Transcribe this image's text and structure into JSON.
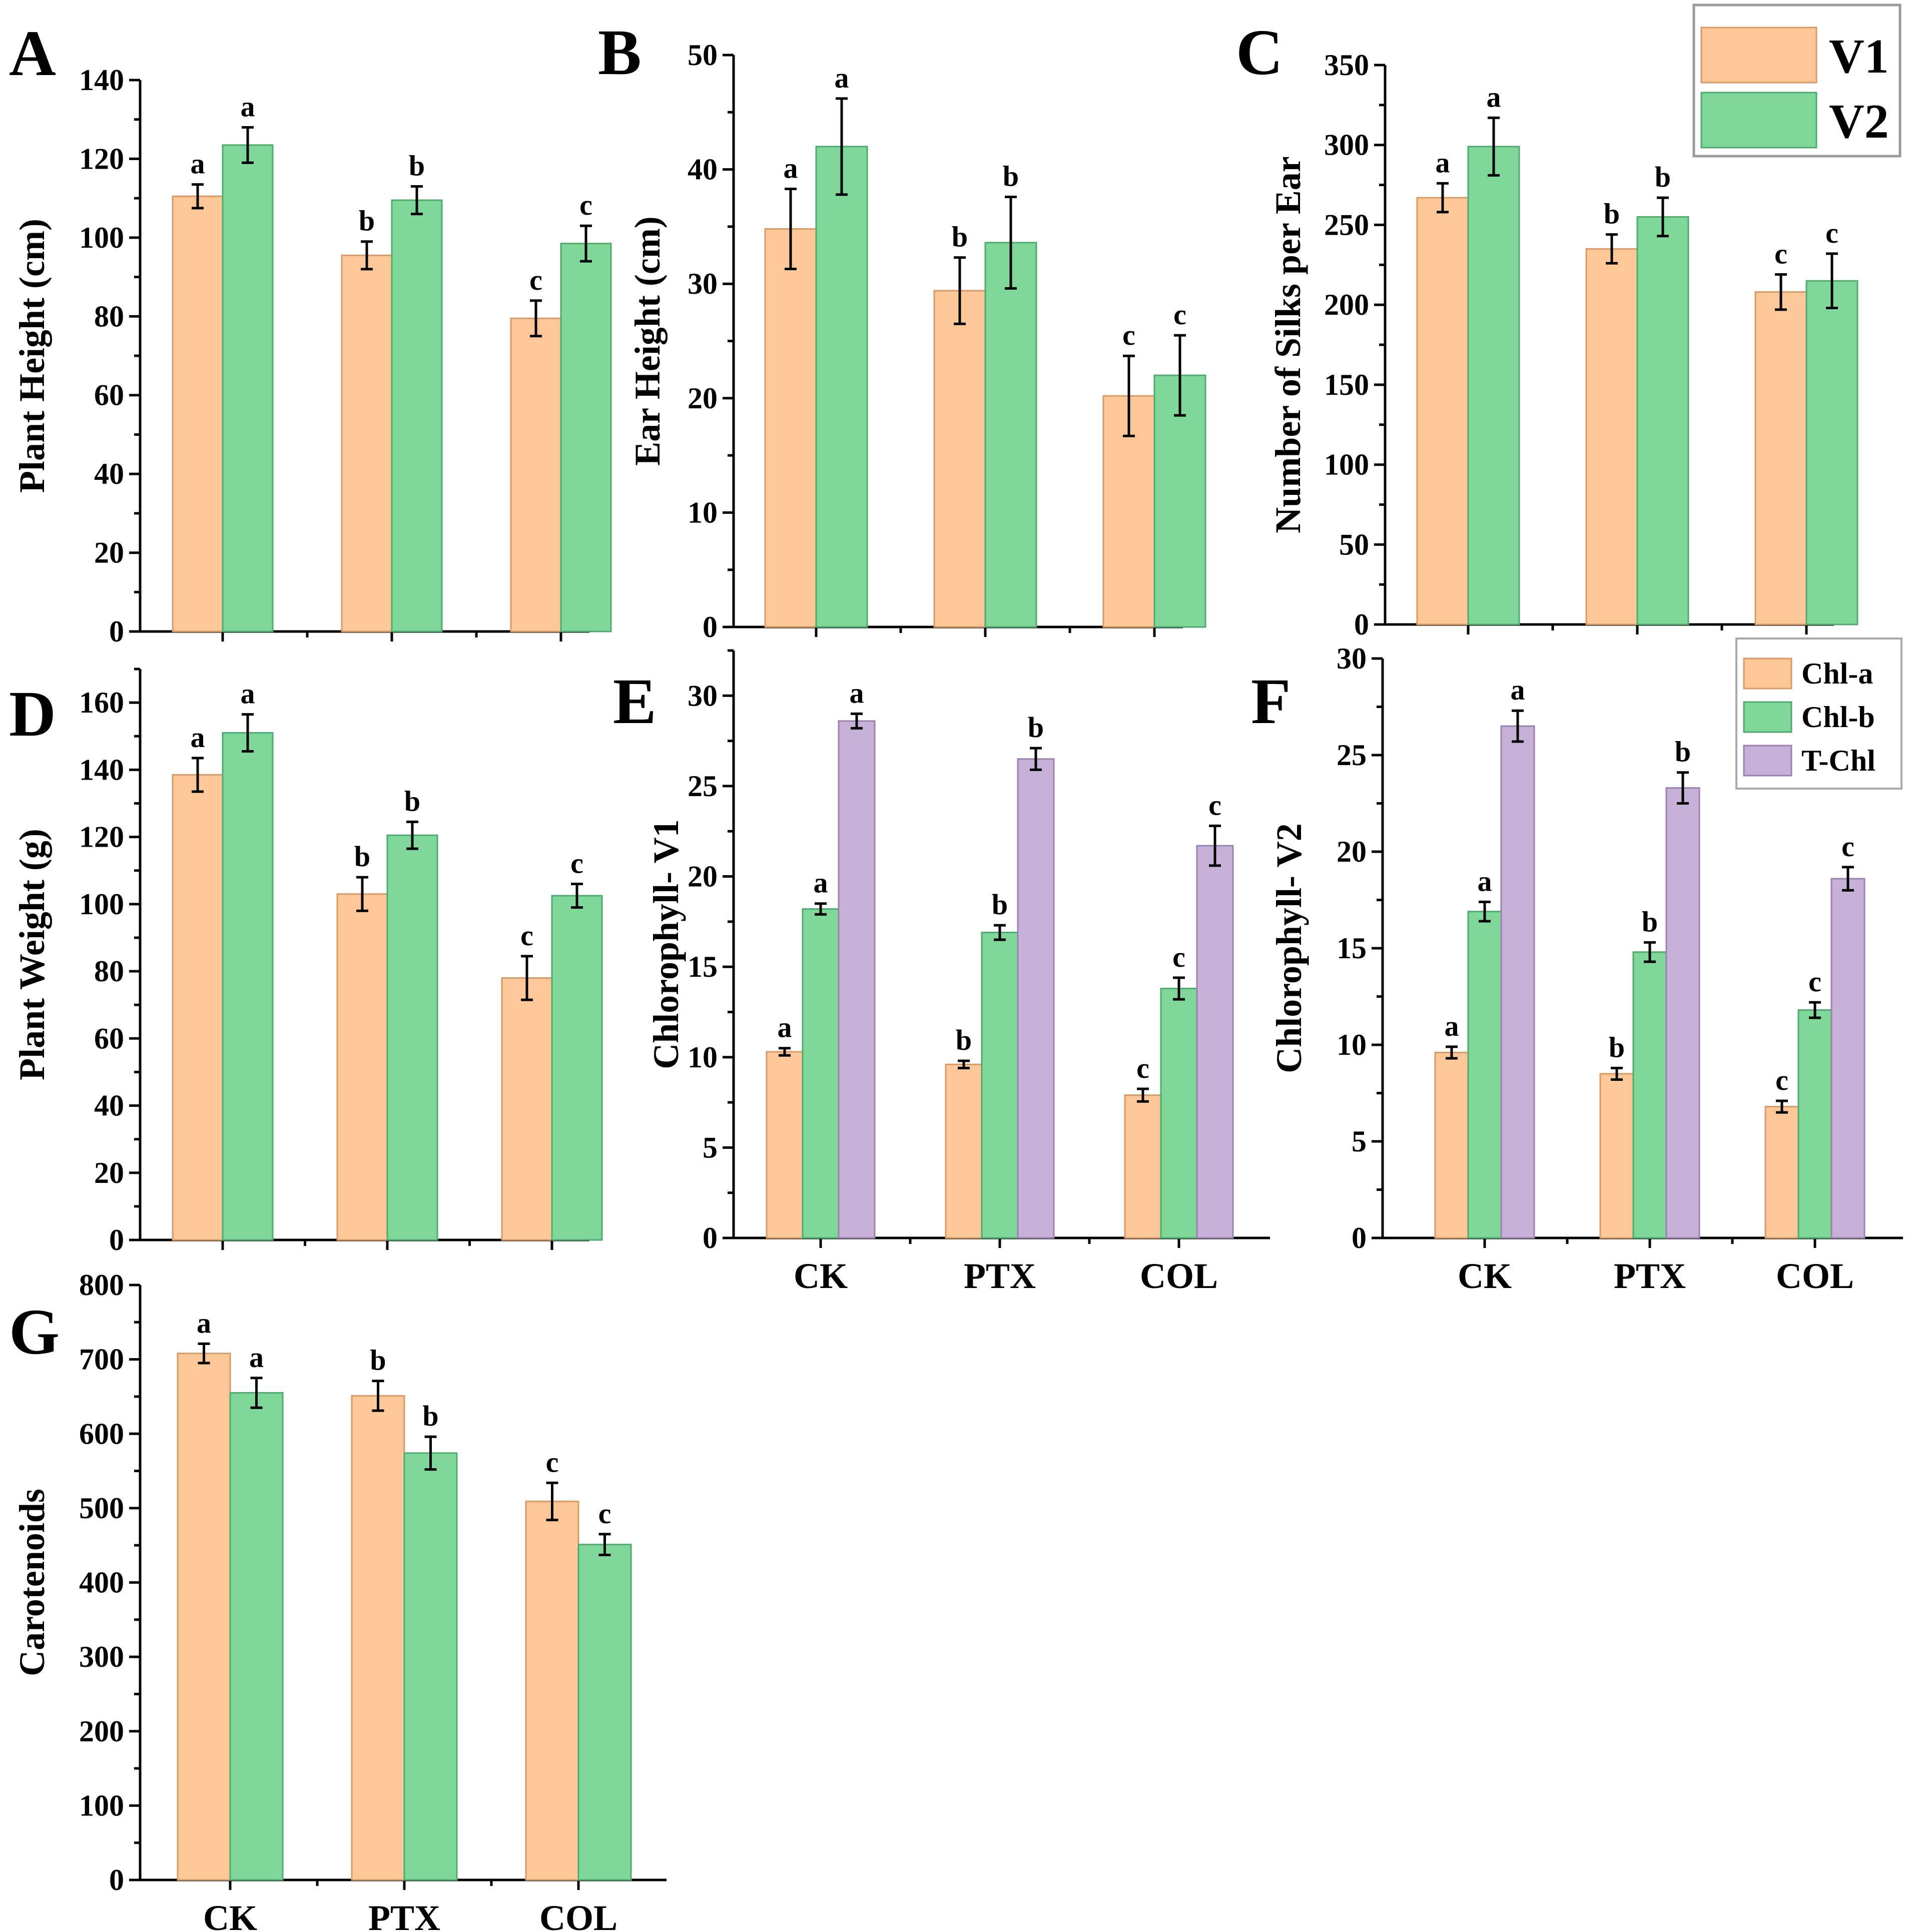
{
  "figure": {
    "categories": [
      "CK",
      "PTX",
      "COL"
    ],
    "colors": {
      "V1": "#FEC797",
      "V2": "#7FD89A",
      "Chl-a": "#FEC797",
      "Chl-b": "#7FD89A",
      "T-Chl": "#C8B1D9"
    },
    "legends": {
      "variety": {
        "entries": [
          "V1",
          "V2"
        ]
      },
      "chlorophyll": {
        "entries": [
          "Chl-a",
          "Chl-b",
          "T-Chl"
        ]
      }
    }
  },
  "chart_data": [
    {
      "id": "A",
      "panel_letter": "A",
      "type": "bar",
      "ylabel": "Plant Height (cm)",
      "ylim": [
        0,
        140
      ],
      "yticks": [
        0,
        20,
        40,
        60,
        80,
        100,
        120,
        140
      ],
      "categories": [
        "CK",
        "PTX",
        "COL"
      ],
      "show_category_labels": false,
      "series": [
        {
          "name": "V1",
          "values": [
            110.5,
            95.5,
            79.5
          ],
          "errors": [
            3.0,
            3.5,
            4.5
          ],
          "letters": [
            "a",
            "b",
            "c"
          ]
        },
        {
          "name": "V2",
          "values": [
            123.5,
            109.5,
            98.5
          ],
          "errors": [
            4.5,
            3.5,
            4.5
          ],
          "letters": [
            "a",
            "b",
            "c"
          ]
        }
      ]
    },
    {
      "id": "B",
      "panel_letter": "B",
      "type": "bar",
      "ylabel": "Ear Height (cm)",
      "ylim": [
        0,
        50
      ],
      "yticks": [
        0,
        10,
        20,
        30,
        40,
        50
      ],
      "categories": [
        "CK",
        "PTX",
        "COL"
      ],
      "show_category_labels": false,
      "series": [
        {
          "name": "V1",
          "values": [
            34.8,
            29.4,
            20.2
          ],
          "errors": [
            3.5,
            2.9,
            3.5
          ],
          "letters": [
            "a",
            "b",
            "c"
          ]
        },
        {
          "name": "V2",
          "values": [
            42.0,
            33.6,
            22.0
          ],
          "errors": [
            4.2,
            4.0,
            3.5
          ],
          "letters": [
            "a",
            "b",
            "c"
          ]
        }
      ]
    },
    {
      "id": "C",
      "panel_letter": "C",
      "type": "bar",
      "ylabel": "Number of Silks per Ear",
      "ylim": [
        0,
        350
      ],
      "yticks": [
        0,
        50,
        100,
        150,
        200,
        250,
        300,
        350
      ],
      "categories": [
        "CK",
        "PTX",
        "COL"
      ],
      "show_category_labels": false,
      "series": [
        {
          "name": "V1",
          "values": [
            267,
            235,
            208
          ],
          "errors": [
            9,
            9,
            11
          ],
          "letters": [
            "a",
            "b",
            "c"
          ]
        },
        {
          "name": "V2",
          "values": [
            299,
            255,
            215
          ],
          "errors": [
            18,
            12,
            17
          ],
          "letters": [
            "a",
            "b",
            "c"
          ]
        }
      ]
    },
    {
      "id": "D",
      "panel_letter": "D",
      "type": "bar",
      "ylabel": "Plant Weight (g)",
      "ylim": [
        0,
        170
      ],
      "yticks": [
        0,
        20,
        40,
        60,
        80,
        100,
        120,
        140,
        160
      ],
      "categories": [
        "CK",
        "PTX",
        "COL"
      ],
      "show_category_labels": false,
      "series": [
        {
          "name": "V1",
          "values": [
            138.5,
            103,
            78
          ],
          "errors": [
            5,
            5,
            6.5
          ],
          "letters": [
            "a",
            "b",
            "c"
          ]
        },
        {
          "name": "V2",
          "values": [
            151,
            120.5,
            102.5
          ],
          "errors": [
            5.5,
            4,
            3.5
          ],
          "letters": [
            "a",
            "b",
            "c"
          ]
        }
      ]
    },
    {
      "id": "E",
      "panel_letter": "E",
      "type": "bar",
      "ylabel": "Chlorophyll- V1",
      "ylim": [
        0,
        32.5
      ],
      "yticks": [
        0,
        5,
        10,
        15,
        20,
        25,
        30
      ],
      "categories": [
        "CK",
        "PTX",
        "COL"
      ],
      "show_category_labels": true,
      "series": [
        {
          "name": "Chl-a",
          "values": [
            10.3,
            9.6,
            7.9
          ],
          "errors": [
            0.2,
            0.2,
            0.35
          ],
          "letters": [
            "a",
            "b",
            "c"
          ]
        },
        {
          "name": "Chl-b",
          "values": [
            18.2,
            16.9,
            13.8
          ],
          "errors": [
            0.3,
            0.4,
            0.6
          ],
          "letters": [
            "a",
            "b",
            "c"
          ]
        },
        {
          "name": "T-Chl",
          "values": [
            28.6,
            26.5,
            21.7
          ],
          "errors": [
            0.4,
            0.6,
            1.1
          ],
          "letters": [
            "a",
            "b",
            "c"
          ]
        }
      ]
    },
    {
      "id": "F",
      "panel_letter": "F",
      "type": "bar",
      "ylabel": "Chlorophyll- V2",
      "ylim": [
        0,
        30
      ],
      "yticks": [
        0,
        5,
        10,
        15,
        20,
        25,
        30
      ],
      "categories": [
        "CK",
        "PTX",
        "COL"
      ],
      "show_category_labels": true,
      "series": [
        {
          "name": "Chl-a",
          "values": [
            9.6,
            8.5,
            6.8
          ],
          "errors": [
            0.3,
            0.3,
            0.3
          ],
          "letters": [
            "a",
            "b",
            "c"
          ]
        },
        {
          "name": "Chl-b",
          "values": [
            16.9,
            14.8,
            11.8
          ],
          "errors": [
            0.5,
            0.5,
            0.4
          ],
          "letters": [
            "a",
            "b",
            "c"
          ]
        },
        {
          "name": "T-Chl",
          "values": [
            26.5,
            23.3,
            18.6
          ],
          "errors": [
            0.8,
            0.8,
            0.6
          ],
          "letters": [
            "a",
            "b",
            "c"
          ]
        }
      ]
    },
    {
      "id": "G",
      "panel_letter": "G",
      "type": "bar",
      "ylabel": "Carotenoids",
      "ylim": [
        0,
        800
      ],
      "yticks": [
        0,
        100,
        200,
        300,
        400,
        500,
        600,
        700,
        800
      ],
      "categories": [
        "CK",
        "PTX",
        "COL"
      ],
      "show_category_labels": true,
      "series": [
        {
          "name": "V1",
          "values": [
            708,
            651,
            509
          ],
          "errors": [
            13,
            20,
            25
          ],
          "letters": [
            "a",
            "b",
            "c"
          ]
        },
        {
          "name": "V2",
          "values": [
            655,
            574,
            451
          ],
          "errors": [
            20,
            22,
            14
          ],
          "letters": [
            "a",
            "b",
            "c"
          ]
        }
      ]
    }
  ]
}
